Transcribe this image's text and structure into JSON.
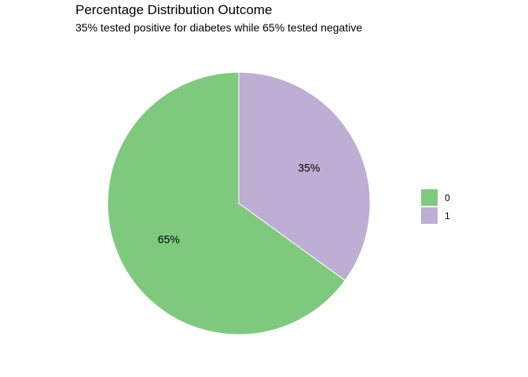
{
  "chart_data": {
    "type": "pie",
    "title": "Percentage Distribution Outcome",
    "subtitle": "35% tested positive for diabetes while 65% tested negative",
    "legend_position": "right",
    "slices": [
      {
        "label": "0",
        "value": 65,
        "display": "65%",
        "color": "#7FC97F"
      },
      {
        "label": "1",
        "value": 35,
        "display": "35%",
        "color": "#BEAED4"
      }
    ]
  }
}
